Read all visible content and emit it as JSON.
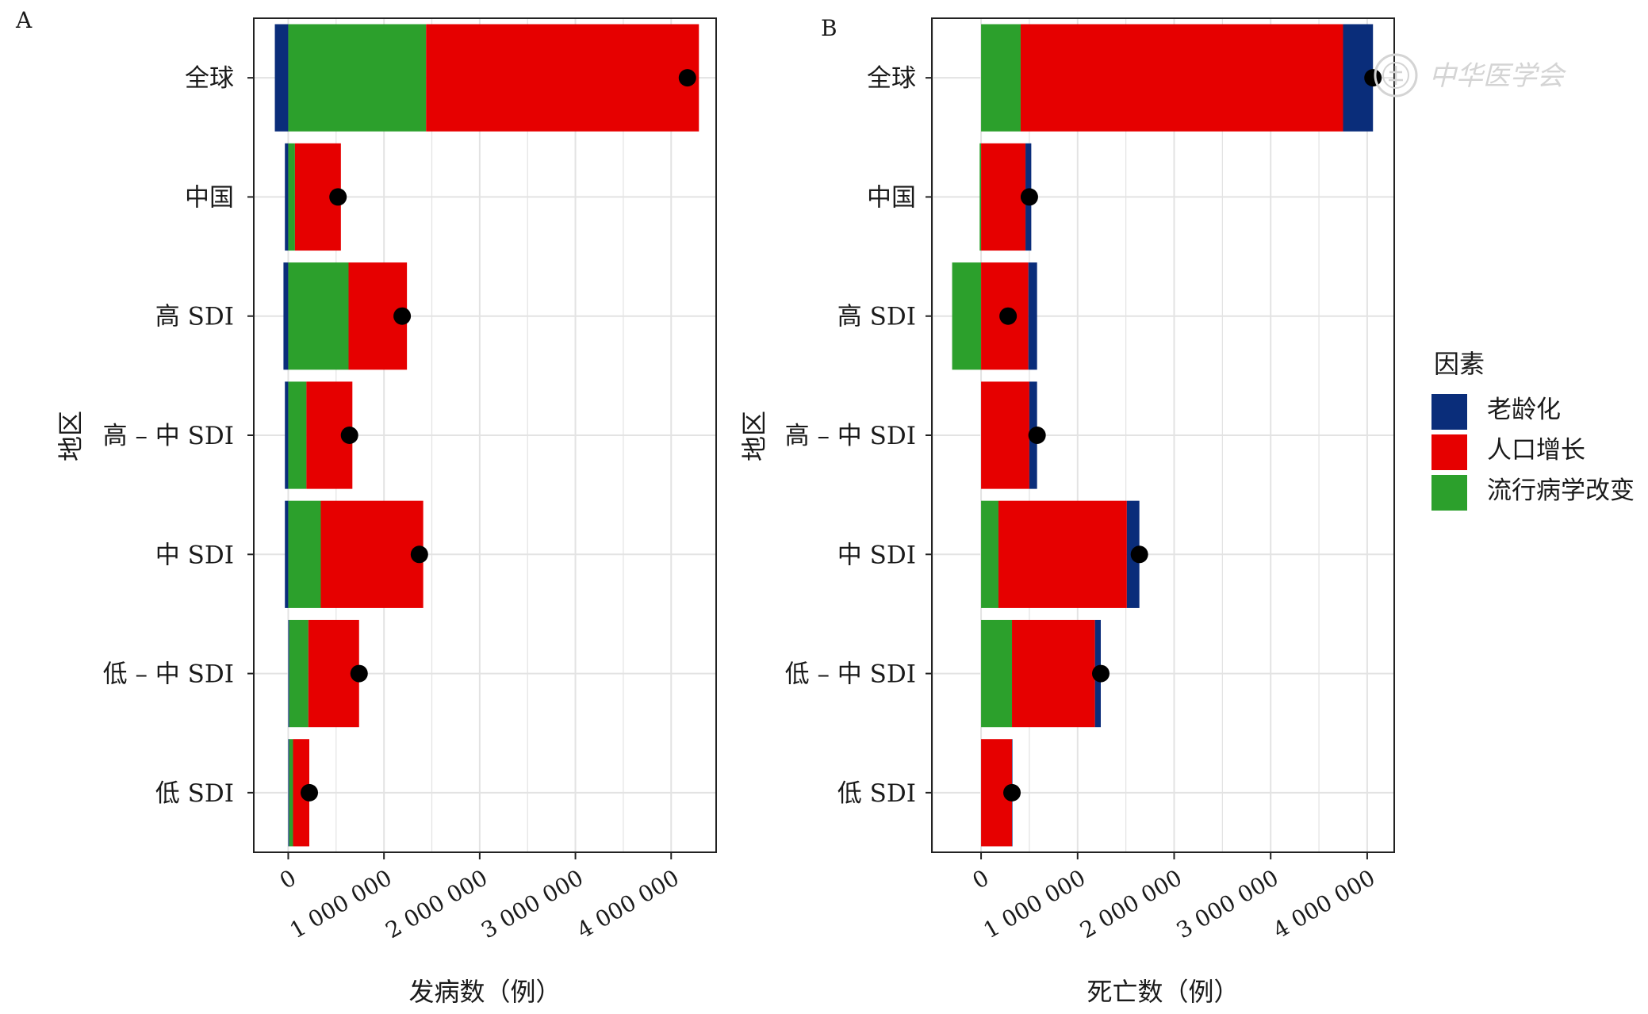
{
  "colors": {
    "aging": "#0a2d7a",
    "population_growth": "#e60000",
    "epidemiological_change": "#2ca02c",
    "point": "#000000",
    "grid": "#e3e3e3",
    "frame": "#222222"
  },
  "watermark": {
    "icon": "society-seal-icon",
    "text": "中华医学会"
  },
  "legend": {
    "title": "因素",
    "items": [
      {
        "key": "aging",
        "label": "老龄化"
      },
      {
        "key": "population_growth",
        "label": "人口增长"
      },
      {
        "key": "epidemiological_change",
        "label": "流行病学改变"
      }
    ]
  },
  "chart_data": [
    {
      "panel": "A",
      "type": "bar",
      "orientation": "horizontal",
      "stacked": true,
      "categories": [
        "全球",
        "中国",
        "高 SDI",
        "高 – 中 SDI",
        "中 SDI",
        "低 – 中 SDI",
        "低 SDI"
      ],
      "series": [
        {
          "key": "aging",
          "name": "老龄化",
          "values": [
            -140000,
            -35000,
            -50000,
            -35000,
            -35000,
            10000,
            10000
          ]
        },
        {
          "key": "epidemiological_change",
          "name": "流行病学改变",
          "values": [
            1440000,
            70000,
            630000,
            190000,
            340000,
            200000,
            40000
          ]
        },
        {
          "key": "population_growth",
          "name": "人口增长",
          "values": [
            2850000,
            480000,
            610000,
            480000,
            1070000,
            530000,
            170000
          ]
        }
      ],
      "net_change": [
        4170000,
        520000,
        1190000,
        640000,
        1370000,
        740000,
        220000
      ],
      "xlabel": "发病数（例）",
      "ylabel": "地区",
      "x_ticks": [
        0,
        1000000,
        2000000,
        3000000,
        4000000
      ],
      "x_tick_labels": [
        "0",
        "1 000 000",
        "2 000 000",
        "3 000 000",
        "4 000 000"
      ],
      "xlim": [
        -360000,
        4470000
      ],
      "grid": true
    },
    {
      "panel": "B",
      "type": "bar",
      "orientation": "horizontal",
      "stacked": true,
      "categories": [
        "全球",
        "中国",
        "高 SDI",
        "高 – 中 SDI",
        "中 SDI",
        "低 – 中 SDI",
        "低 SDI"
      ],
      "series": [
        {
          "key": "epidemiological_change",
          "name": "流行病学改变",
          "values": [
            410000,
            -15000,
            -300000,
            0,
            180000,
            320000,
            0
          ]
        },
        {
          "key": "population_growth",
          "name": "人口增长",
          "values": [
            3340000,
            460000,
            490000,
            500000,
            1330000,
            860000,
            320000
          ]
        },
        {
          "key": "aging",
          "name": "老龄化",
          "values": [
            310000,
            60000,
            90000,
            80000,
            130000,
            60000,
            5000
          ]
        }
      ],
      "net_change": [
        4060000,
        500000,
        280000,
        580000,
        1640000,
        1240000,
        320000
      ],
      "xlabel": "死亡数（例）",
      "ylabel": "地区",
      "x_ticks": [
        0,
        1000000,
        2000000,
        3000000,
        4000000
      ],
      "x_tick_labels": [
        "0",
        "1 000 000",
        "2 000 000",
        "3 000 000",
        "4 000 000"
      ],
      "xlim": [
        -510000,
        4280000
      ],
      "grid": true
    }
  ]
}
